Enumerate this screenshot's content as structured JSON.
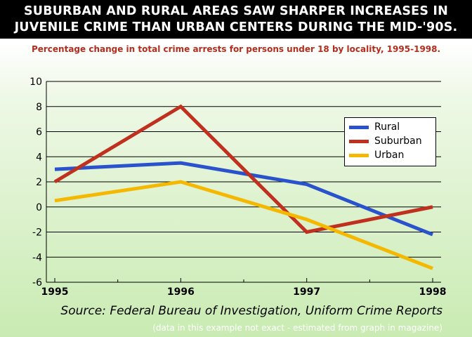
{
  "title_line1": "SUBURBAN AND RURAL AREAS SAW SHARPER INCREASES IN",
  "title_line2": "JUVENILE CRIME THAN URBAN CENTERS DURING THE MID-'90S.",
  "subtitle": "Percentage change in total crime arrests for persons under 18 by locality, 1995-1998.",
  "source": "Source: Federal Bureau of Investigation, Uniform Crime Reports",
  "note": "(data in this example not exact - estimated from graph in magazine)",
  "chart_data": {
    "type": "line",
    "x": [
      1995,
      1996,
      1997,
      1998
    ],
    "x_tick_labels": [
      "1995",
      "1996",
      "1997",
      "1998"
    ],
    "ylim": [
      -6,
      10
    ],
    "y_ticks": [
      10,
      8,
      6,
      4,
      2,
      0,
      -2,
      -4,
      -6
    ],
    "grid": true,
    "legend_position": "right",
    "series": [
      {
        "name": "Rural",
        "color": "#2a52cc",
        "values": [
          3.0,
          3.5,
          1.8,
          -2.2
        ]
      },
      {
        "name": "Suburban",
        "color": "#c0301f",
        "values": [
          2.0,
          8.0,
          -2.0,
          0.0
        ]
      },
      {
        "name": "Urban",
        "color": "#f5b800",
        "values": [
          0.5,
          2.0,
          -1.0,
          -4.9
        ]
      }
    ]
  }
}
